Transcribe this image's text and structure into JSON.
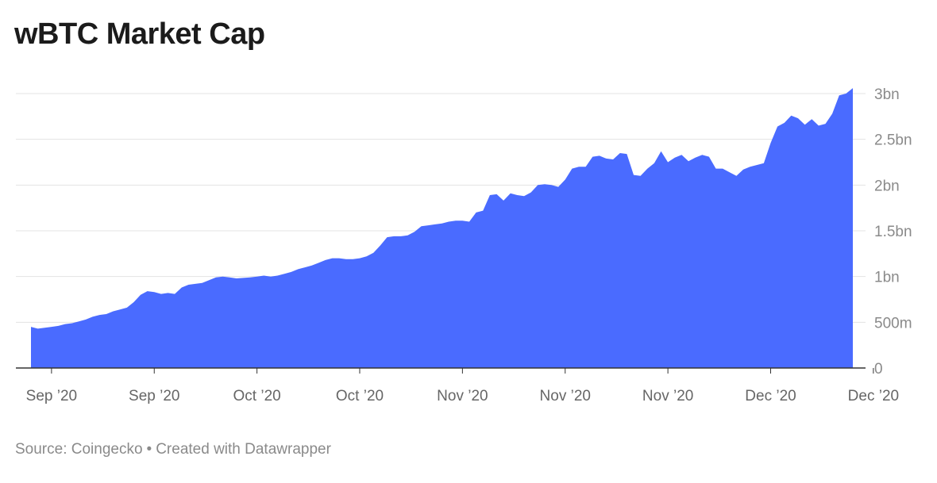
{
  "title": "wBTC Market Cap",
  "footer": {
    "source": "Source: Coingecko",
    "separator": "•",
    "credit": "Created with Datawrapper"
  },
  "colors": {
    "area": "#4a6bff",
    "grid": "#e3e3e3",
    "axis": "#333333"
  },
  "chart_data": {
    "type": "area",
    "title": "wBTC Market Cap",
    "xlabel": "",
    "ylabel": "",
    "ylim": [
      0,
      3000000000
    ],
    "y_ticks": [
      {
        "value": 0,
        "label": "0"
      },
      {
        "value": 500000000,
        "label": "500m"
      },
      {
        "value": 1000000000,
        "label": "1bn"
      },
      {
        "value": 1500000000,
        "label": "1.5bn"
      },
      {
        "value": 2000000000,
        "label": "2bn"
      },
      {
        "value": 2500000000,
        "label": "2.5bn"
      },
      {
        "value": 3000000000,
        "label": "3bn"
      }
    ],
    "x_ticks": [
      {
        "index": 3,
        "label": "Sep ’20"
      },
      {
        "index": 18,
        "label": "Sep ’20"
      },
      {
        "index": 33,
        "label": "Oct ’20"
      },
      {
        "index": 48,
        "label": "Oct ’20"
      },
      {
        "index": 63,
        "label": "Nov ’20"
      },
      {
        "index": 78,
        "label": "Nov ’20"
      },
      {
        "index": 93,
        "label": "Nov ’20"
      },
      {
        "index": 108,
        "label": "Dec ’20"
      },
      {
        "index": 123,
        "label": "Dec ’20"
      }
    ],
    "grid": true,
    "series": [
      {
        "values": [
          450000000,
          430000000,
          440000000,
          450000000,
          460000000,
          480000000,
          490000000,
          510000000,
          530000000,
          560000000,
          580000000,
          590000000,
          620000000,
          640000000,
          660000000,
          720000000,
          800000000,
          840000000,
          830000000,
          810000000,
          820000000,
          810000000,
          880000000,
          910000000,
          920000000,
          930000000,
          960000000,
          990000000,
          1000000000,
          990000000,
          980000000,
          985000000,
          990000000,
          1000000000,
          1010000000,
          1000000000,
          1010000000,
          1030000000,
          1050000000,
          1080000000,
          1100000000,
          1120000000,
          1150000000,
          1180000000,
          1200000000,
          1200000000,
          1190000000,
          1190000000,
          1200000000,
          1220000000,
          1260000000,
          1340000000,
          1430000000,
          1440000000,
          1440000000,
          1450000000,
          1490000000,
          1550000000,
          1560000000,
          1570000000,
          1580000000,
          1600000000,
          1610000000,
          1610000000,
          1600000000,
          1700000000,
          1720000000,
          1890000000,
          1900000000,
          1830000000,
          1910000000,
          1890000000,
          1880000000,
          1920000000,
          2000000000,
          2010000000,
          2000000000,
          1980000000,
          2060000000,
          2180000000,
          2200000000,
          2200000000,
          2310000000,
          2320000000,
          2290000000,
          2280000000,
          2350000000,
          2340000000,
          2110000000,
          2100000000,
          2180000000,
          2240000000,
          2370000000,
          2250000000,
          2300000000,
          2330000000,
          2260000000,
          2300000000,
          2330000000,
          2310000000,
          2180000000,
          2180000000,
          2140000000,
          2100000000,
          2170000000,
          2200000000,
          2220000000,
          2240000000,
          2460000000,
          2640000000,
          2680000000,
          2760000000,
          2730000000,
          2660000000,
          2720000000,
          2650000000,
          2670000000,
          2780000000,
          2980000000,
          3000000000,
          3060000000
        ]
      }
    ]
  }
}
